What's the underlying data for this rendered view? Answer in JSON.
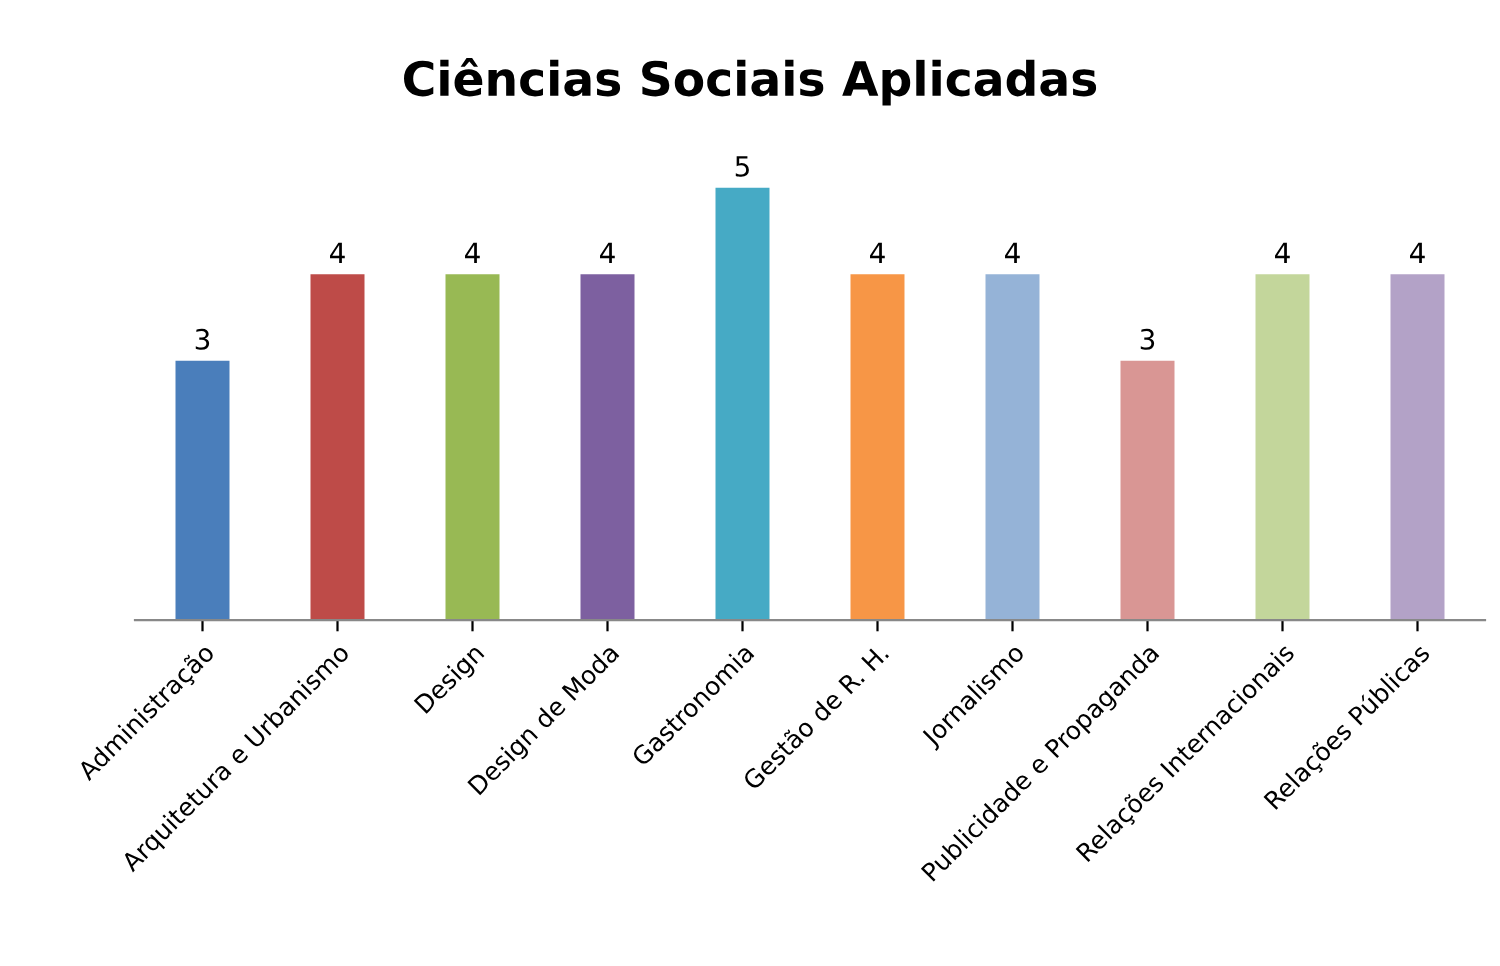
{
  "chart_data": {
    "type": "bar",
    "title": "Ciências Sociais Aplicadas",
    "categories": [
      "Administração",
      "Arquitetura e Urbanismo",
      "Design",
      "Design de Moda",
      "Gastronomia",
      "Gestão de R. H.",
      "Jornalismo",
      "Publicidade e Propaganda",
      "Relações Internacionais",
      "Relações Públicas"
    ],
    "values": [
      3,
      4,
      4,
      4,
      5,
      4,
      4,
      3,
      4,
      4
    ],
    "colors": [
      "#4a7ebb",
      "#be4b48",
      "#98b954",
      "#7d60a0",
      "#46aac5",
      "#f79646",
      "#95b3d7",
      "#d99694",
      "#c3d69b",
      "#b3a2c7"
    ],
    "data_labels": true,
    "grid": false,
    "legend": false,
    "tick_labels": "x"
  }
}
